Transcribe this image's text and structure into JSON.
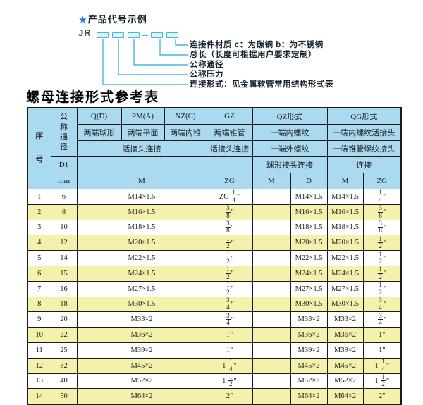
{
  "colors": {
    "header_bg": "#aadaf0",
    "row_alt": "#f5f1ad",
    "table_border": "#1a1a1a",
    "diagram_line": "#44b8da",
    "star_blue": "#2878d0",
    "label_text": "#15222e"
  },
  "diagram": {
    "star": "★",
    "title": "产品代号示例",
    "prefix": "JR",
    "labels": [
      "连接件材质  c：为碳钢  b：为不锈钢",
      "总长（长度可根据用户要求定制）",
      "公称通径",
      "公称压力",
      "连接形式：见金属软管常用结构形式表"
    ]
  },
  "table": {
    "title": "螺母连接形式参考表",
    "header": {
      "seq": "序号",
      "dn": "公称通径",
      "d1": "D1",
      "unit": "mm",
      "q": "Q(D)",
      "pm": "PM(A)",
      "nz": "NZ(C)",
      "gz": "GZ",
      "qz": "QZ形式",
      "qg": "QG形式",
      "q_sub": "两端球形",
      "pm_sub": "两端平面",
      "nz_sub": "两端内锥",
      "gz_sub": "两端锥管",
      "qz_sub": "一端内螺纹",
      "qg_sub": "一端内螺纹活接头",
      "left_conn": "活接头连接",
      "gz_conn": "活接头连接",
      "qz_conn2": "一端外螺纹",
      "qg_conn2": "一端锥管螺纹接头",
      "qz_conn3": "球形接头连接",
      "qg_conn3": "连接",
      "m": "M",
      "zg": "ZG",
      "qz_m": "M",
      "qz_d": "D",
      "qg_m": "M",
      "qg_zg": "ZG"
    },
    "rows": [
      [
        "1",
        "6",
        "M14×1.5",
        "ZG 1/4\"",
        "",
        "M14×1.5",
        "M14×1.5",
        "1/4\""
      ],
      [
        "2",
        "8",
        "M16×1.5",
        "3/8\"",
        "",
        "M16×1.5",
        "M16×1.5",
        "3/8\""
      ],
      [
        "3",
        "10",
        "M18×1.5",
        "3/8\"",
        "",
        "M18×1.5",
        "M18×1.5",
        "3/8\""
      ],
      [
        "4",
        "12",
        "M20×1.5",
        "1/2\"",
        "",
        "M20×1.5",
        "M20×1.5",
        "1/2\""
      ],
      [
        "5",
        "14",
        "M22×1.5",
        "1/2\"",
        "",
        "M22×1.5",
        "M22×1.5",
        "1/2\""
      ],
      [
        "6",
        "15",
        "M24×1.5",
        "1/2\"",
        "",
        "M24×1.5",
        "M24×1.5",
        "1/2\""
      ],
      [
        "7",
        "16",
        "M27×1.5",
        "1/2\"",
        "",
        "M27×1.5",
        "M27×1.5",
        "1/2\""
      ],
      [
        "8",
        "18",
        "M30×1.5",
        "3/4\"",
        "",
        "M30×1.5",
        "M30×1.5",
        "3/4\""
      ],
      [
        "9",
        "20",
        "M33×2",
        "3/4\"",
        "",
        "M33×2",
        "M33×2",
        "3/4\""
      ],
      [
        "10",
        "22",
        "M36×2",
        "1\"",
        "",
        "M36×2",
        "M36×2",
        "1\""
      ],
      [
        "11",
        "25",
        "M39×2",
        "1\"",
        "",
        "M39×2",
        "M39×2",
        "1\""
      ],
      [
        "12",
        "32",
        "M45×2",
        "1 1/4\"",
        "",
        "M45×2",
        "M45×2",
        "1 1/4\""
      ],
      [
        "13",
        "40",
        "M52×2",
        "1 1/2\"",
        "",
        "M52×2",
        "M52×2",
        "1 1/2\""
      ],
      [
        "14",
        "50",
        "M64×2",
        "2\"",
        "",
        "M64×2",
        "M64×2",
        "2\""
      ]
    ]
  }
}
